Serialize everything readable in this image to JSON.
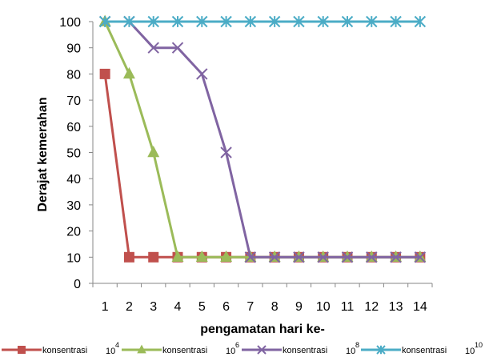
{
  "chart_data": {
    "type": "line",
    "x": [
      1,
      2,
      3,
      4,
      5,
      6,
      7,
      8,
      9,
      10,
      11,
      12,
      13,
      14
    ],
    "xlabel": "pengamatan hari ke-",
    "ylabel": "Derajat kemerahan",
    "ylim": [
      0,
      100
    ],
    "yticks": [
      0,
      10,
      20,
      30,
      40,
      50,
      60,
      70,
      80,
      90,
      100
    ],
    "grid": false,
    "legend_position": "bottom",
    "series": [
      {
        "name": "konsentrasi",
        "exp_base": "10",
        "exp": "4",
        "color": "#c0504d",
        "marker": "square",
        "values": [
          80,
          10,
          10,
          10,
          10,
          10,
          10,
          10,
          10,
          10,
          10,
          10,
          10,
          10
        ]
      },
      {
        "name": "konsentrasi",
        "exp_base": "10",
        "exp": "6",
        "color": "#9bbb59",
        "marker": "triangle",
        "values": [
          100,
          80,
          50,
          10,
          10,
          10,
          10,
          10,
          10,
          10,
          10,
          10,
          10,
          10
        ]
      },
      {
        "name": "konsentrasi",
        "exp_base": "10",
        "exp": "8",
        "color": "#8064a2",
        "marker": "x",
        "values": [
          100,
          100,
          90,
          90,
          80,
          50,
          10,
          10,
          10,
          10,
          10,
          10,
          10,
          10
        ]
      },
      {
        "name": "konsentrasi",
        "exp_base": "10",
        "exp": "10",
        "color": "#4bacc6",
        "marker": "star",
        "values": [
          100,
          100,
          100,
          100,
          100,
          100,
          100,
          100,
          100,
          100,
          100,
          100,
          100,
          100
        ]
      }
    ]
  }
}
